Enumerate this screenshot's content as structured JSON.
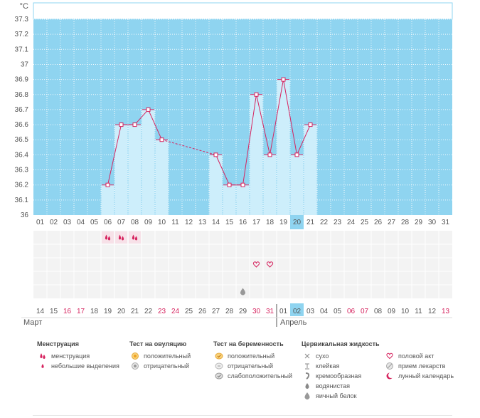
{
  "unit_label": "°C",
  "chart_data": {
    "type": "bar",
    "y_ticks": [
      "37.3",
      "37.2",
      "37.1",
      "37",
      "36.9",
      "36.8",
      "36.7",
      "36.6",
      "36.5",
      "36.4",
      "36.3",
      "36.2",
      "36.1",
      "36"
    ],
    "ylim": [
      36,
      37.3
    ],
    "top_day_labels": [
      "01",
      "02",
      "03",
      "04",
      "05",
      "06",
      "07",
      "08",
      "09",
      "10",
      "11",
      "12",
      "13",
      "14",
      "15",
      "16",
      "17",
      "18",
      "19",
      "20",
      "21",
      "22",
      "23",
      "24",
      "25",
      "26",
      "27",
      "28",
      "29",
      "30",
      "31"
    ],
    "bottom_day_labels": [
      "14",
      "15",
      "16",
      "17",
      "18",
      "19",
      "20",
      "21",
      "22",
      "23",
      "24",
      "25",
      "26",
      "27",
      "28",
      "29",
      "30",
      "31",
      "01",
      "02",
      "03",
      "04",
      "05",
      "06",
      "07",
      "08",
      "09",
      "10",
      "11",
      "12",
      "13"
    ],
    "bottom_red_index": [
      2,
      3,
      9,
      10,
      16,
      17,
      23,
      24,
      30
    ],
    "highlight_index": 19,
    "temperatures": [
      null,
      null,
      null,
      null,
      null,
      36.2,
      36.6,
      36.6,
      36.7,
      36.5,
      null,
      null,
      null,
      36.4,
      36.2,
      36.2,
      36.8,
      36.4,
      36.9,
      36.4,
      36.6,
      null,
      null,
      null,
      null,
      null,
      null,
      null,
      null,
      null,
      null
    ],
    "dashed_segments": [
      [
        9,
        13
      ]
    ],
    "markers": [
      {
        "row": 0,
        "index": 5,
        "icon": "menstruation-icon"
      },
      {
        "row": 0,
        "index": 6,
        "icon": "menstruation-icon"
      },
      {
        "row": 0,
        "index": 7,
        "icon": "menstruation-icon"
      },
      {
        "row": 2,
        "index": 16,
        "icon": "heart-icon"
      },
      {
        "row": 2,
        "index": 17,
        "icon": "heart-icon"
      },
      {
        "row": 4,
        "index": 15,
        "icon": "egg-white-icon"
      }
    ]
  },
  "months": {
    "left": "Март",
    "right": "Апрель"
  },
  "legend": {
    "columns": [
      {
        "title": "Менструация",
        "items": [
          {
            "label": "менструация",
            "icon": "menstruation-icon"
          },
          {
            "label": "небольшие выделения",
            "icon": "spotting-icon"
          }
        ]
      },
      {
        "title": "Тест на овуляцию",
        "items": [
          {
            "label": "положительный",
            "icon": "ovulation-positive-icon"
          },
          {
            "label": "отрицательный",
            "icon": "ovulation-negative-icon"
          }
        ]
      },
      {
        "title": "Тест на беременность",
        "items": [
          {
            "label": "положительный",
            "icon": "pregnancy-positive-icon"
          },
          {
            "label": "отрицательный",
            "icon": "pregnancy-negative-icon"
          },
          {
            "label": "слабоположительный",
            "icon": "pregnancy-weak-icon"
          }
        ]
      },
      {
        "title": "Цервикальная жидкость",
        "items": [
          {
            "label": "сухо",
            "icon": "dry-icon"
          },
          {
            "label": "клейкая",
            "icon": "sticky-icon"
          },
          {
            "label": "кремообразная",
            "icon": "creamy-icon"
          },
          {
            "label": "водянистая",
            "icon": "watery-icon"
          },
          {
            "label": "яичный белок",
            "icon": "egg-white-icon"
          }
        ]
      },
      {
        "title": "",
        "items": [
          {
            "label": "половой акт",
            "icon": "heart-icon"
          },
          {
            "label": "прием лекарств",
            "icon": "medication-icon"
          },
          {
            "label": "лунный календарь",
            "icon": "moon-icon"
          }
        ]
      }
    ]
  },
  "colors": {
    "plot_bg": "#8fd4f0",
    "bar": "#cdeefb",
    "line": "#d6245f",
    "highlight": "#8fd4f0",
    "grid": "#ffffff",
    "marker_grid_bg": "#f3f3f3"
  }
}
